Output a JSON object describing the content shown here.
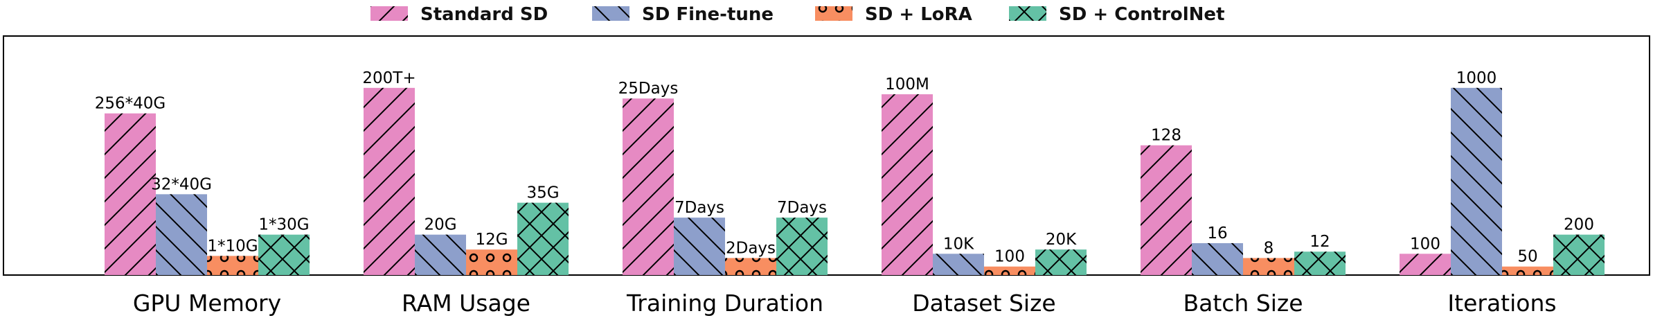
{
  "chart_data": {
    "type": "bar",
    "title": "",
    "xlabel": "",
    "ylabel": "",
    "grid": false,
    "legend_position": "top-center",
    "categories": [
      "GPU Memory",
      "RAM Usage",
      "Training Duration",
      "Dataset Size",
      "Batch Size",
      "Iterations"
    ],
    "series": [
      {
        "name": "Standard SD",
        "color": "#e68ac3",
        "hatch": "forward-diagonal",
        "values": [
          0.76,
          0.88,
          0.83,
          0.85,
          0.61,
          0.1
        ],
        "labels": [
          "256*40G",
          "200T+",
          "25Days",
          "100M",
          "128",
          "100"
        ]
      },
      {
        "name": "SD Fine-tune",
        "color": "#8d9fcb",
        "hatch": "back-diagonal",
        "values": [
          0.38,
          0.19,
          0.27,
          0.1,
          0.15,
          0.88
        ],
        "labels": [
          "32*40G",
          "20G",
          "7Days",
          "10K",
          "16",
          "1000"
        ]
      },
      {
        "name": "SD + LoRA",
        "color": "#f88e61",
        "hatch": "circles",
        "values": [
          0.09,
          0.12,
          0.08,
          0.04,
          0.08,
          0.04
        ],
        "labels": [
          "1*10G",
          "12G",
          "2Days",
          "100",
          "8",
          "50"
        ]
      },
      {
        "name": "SD + ControlNet",
        "color": "#64c1a5",
        "hatch": "cross",
        "values": [
          0.19,
          0.34,
          0.27,
          0.12,
          0.11,
          0.19
        ],
        "labels": [
          "1*30G",
          "35G",
          "7Days",
          "20K",
          "12",
          "200"
        ]
      }
    ],
    "ylim": [
      0,
      1
    ]
  }
}
